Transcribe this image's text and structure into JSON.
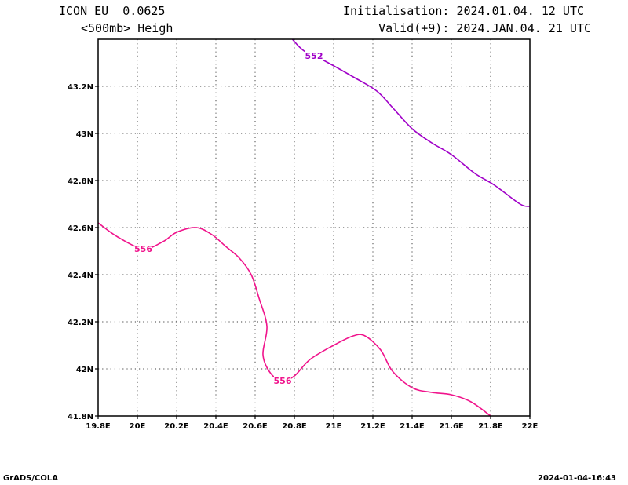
{
  "header": {
    "model": "ICON EU  0.0625",
    "field": "<500mb> Heigh",
    "init": "Initialisation: 2024.01.04. 12 UTC",
    "valid": "Valid(+9): 2024.JAN.04. 21 UTC"
  },
  "footer": {
    "left": "GrADS/COLA",
    "right": "2024-01-04-16:43"
  },
  "chart_data": {
    "type": "line",
    "xlim": [
      19.8,
      22.0
    ],
    "ylim": [
      41.8,
      43.4
    ],
    "xticks": [
      19.8,
      20.0,
      20.2,
      20.4,
      20.6,
      20.8,
      21.0,
      21.2,
      21.4,
      21.6,
      21.8,
      22.0
    ],
    "xtick_labels": [
      "19.8E",
      "20E",
      "20.2E",
      "20.4E",
      "20.6E",
      "20.8E",
      "21E",
      "21.2E",
      "21.4E",
      "21.6E",
      "21.8E",
      "22E"
    ],
    "yticks": [
      41.8,
      42.0,
      42.2,
      42.4,
      42.6,
      42.8,
      43.0,
      43.2
    ],
    "ytick_labels": [
      "41.8N",
      "42N",
      "42.2N",
      "42.4N",
      "42.6N",
      "42.8N",
      "43N",
      "43.2N"
    ],
    "grid": true,
    "series": [
      {
        "label": "552",
        "color": "#a000c8",
        "label_at": [
          20.9,
          43.33
        ],
        "points": [
          [
            20.79,
            43.4
          ],
          [
            20.85,
            43.35
          ],
          [
            20.95,
            43.31
          ],
          [
            21.1,
            43.24
          ],
          [
            21.22,
            43.18
          ],
          [
            21.3,
            43.11
          ],
          [
            21.4,
            43.02
          ],
          [
            21.5,
            42.96
          ],
          [
            21.6,
            42.91
          ],
          [
            21.72,
            42.83
          ],
          [
            21.82,
            42.78
          ],
          [
            21.95,
            42.7
          ],
          [
            22.0,
            42.69
          ]
        ]
      },
      {
        "label": "556",
        "color": "#f0148c",
        "label_at_list": [
          [
            20.03,
            42.51
          ],
          [
            20.74,
            41.95
          ]
        ],
        "points": [
          [
            19.8,
            42.62
          ],
          [
            19.9,
            42.56
          ],
          [
            20.03,
            42.51
          ],
          [
            20.13,
            42.54
          ],
          [
            20.2,
            42.58
          ],
          [
            20.3,
            42.6
          ],
          [
            20.38,
            42.57
          ],
          [
            20.45,
            42.52
          ],
          [
            20.52,
            42.47
          ],
          [
            20.58,
            42.4
          ],
          [
            20.62,
            42.3
          ],
          [
            20.66,
            42.18
          ],
          [
            20.64,
            42.06
          ],
          [
            20.68,
            41.98
          ],
          [
            20.74,
            41.95
          ],
          [
            20.8,
            41.97
          ],
          [
            20.88,
            42.04
          ],
          [
            21.0,
            42.1
          ],
          [
            21.1,
            42.14
          ],
          [
            21.16,
            42.14
          ],
          [
            21.24,
            42.08
          ],
          [
            21.3,
            41.99
          ],
          [
            21.4,
            41.92
          ],
          [
            21.5,
            41.9
          ],
          [
            21.6,
            41.89
          ],
          [
            21.7,
            41.86
          ],
          [
            21.8,
            41.8
          ]
        ]
      }
    ]
  }
}
